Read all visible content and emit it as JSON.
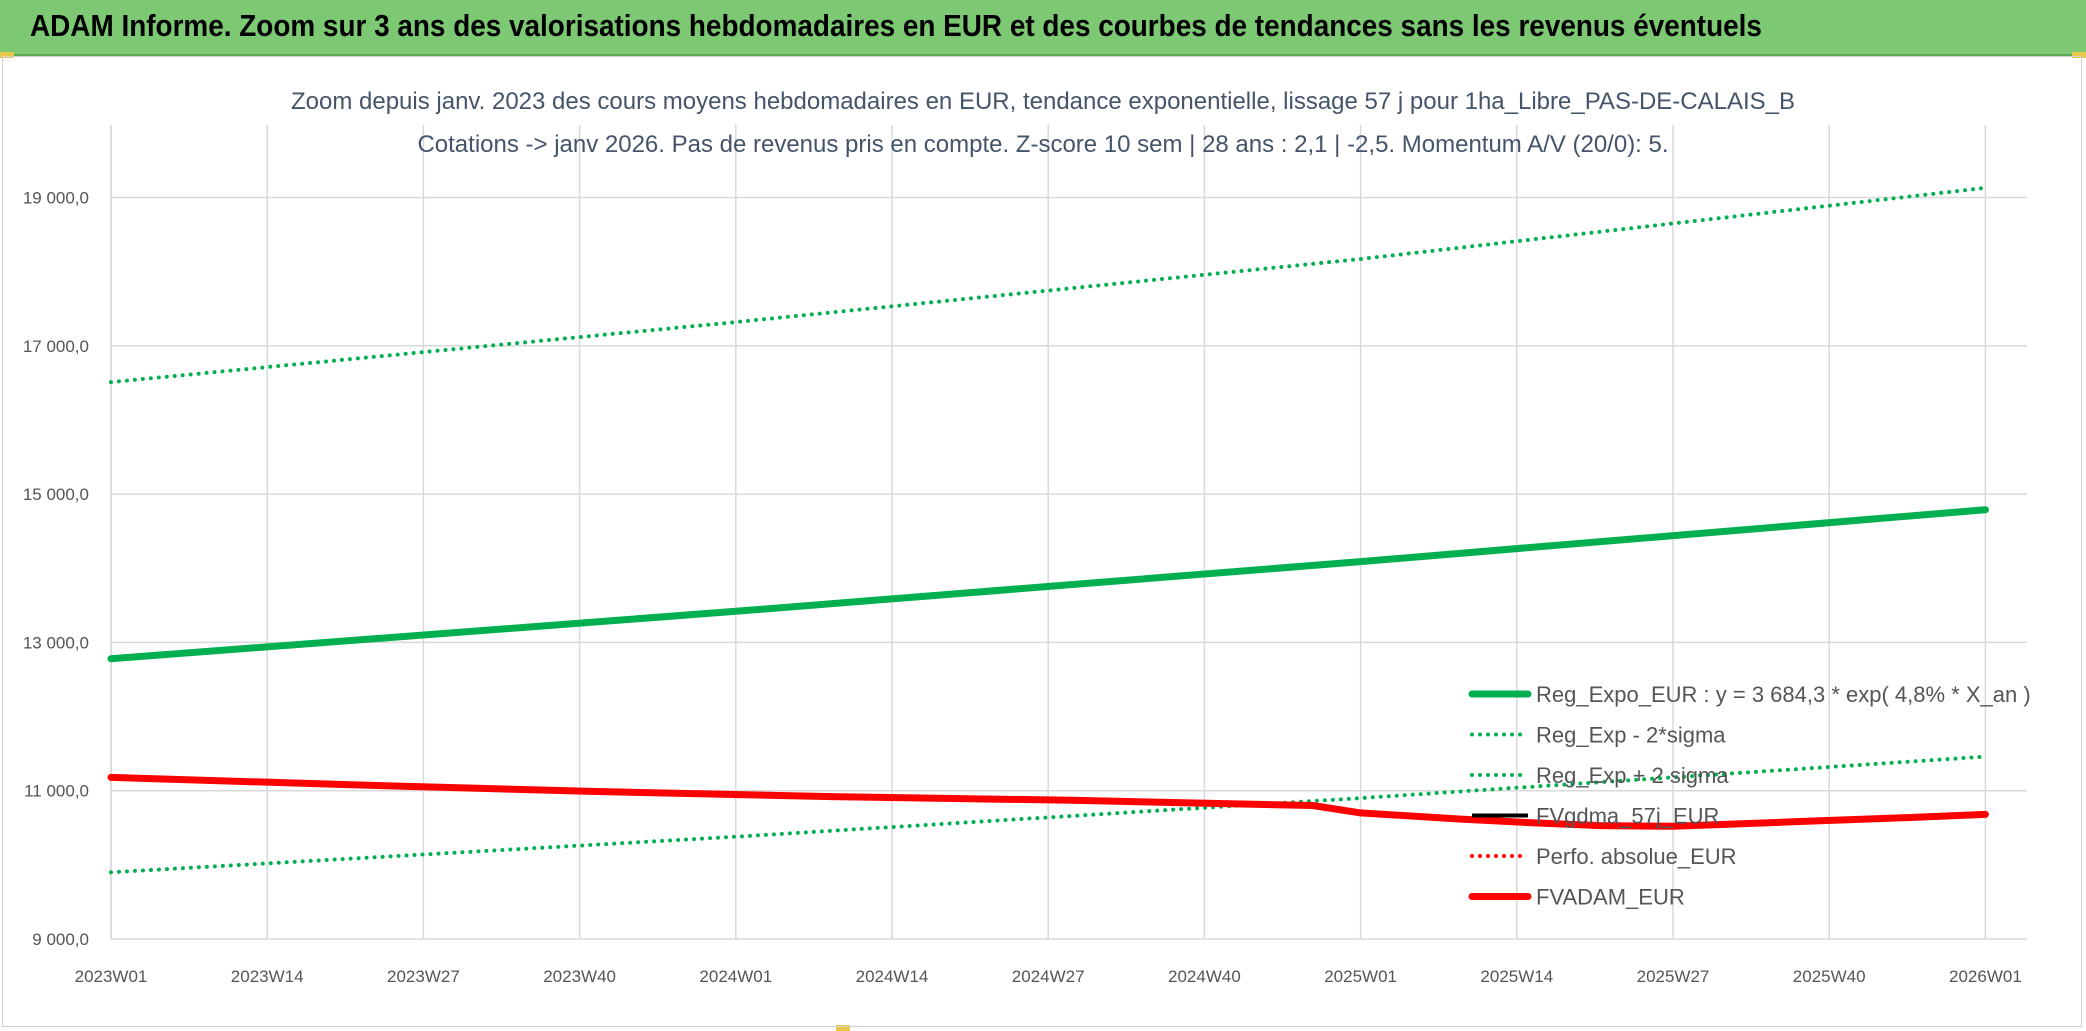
{
  "banner": {
    "title": "ADAM Informe. Zoom sur 3 ans des valorisations hebdomadaires en EUR et des courbes de tendances sans les revenus éventuels"
  },
  "chart_data": {
    "type": "line",
    "title": "Zoom depuis janv. 2023 des cours moyens hebdomadaires en EUR, tendance exponentielle, lissage 57 j pour 1ha_Libre_PAS-DE-CALAIS_B",
    "subtitle": "Cotations -> janv 2026. Pas de revenus pris en compte. Z-score 10 sem | 28 ans : 2,1 | -2,5. Momentum A/V (20/0): 5.",
    "xlabel": "",
    "ylabel": "",
    "x_tick_labels": [
      "2023W01",
      "2023W14",
      "2023W27",
      "2023W40",
      "2024W01",
      "2024W14",
      "2024W27",
      "2024W40",
      "2025W01",
      "2025W14",
      "2025W27",
      "2025W40",
      "2026W01"
    ],
    "x_range_weeks": [
      0,
      160
    ],
    "y_tick_labels": [
      "9 000,0",
      "11 000,0",
      "13 000,0",
      "15 000,0",
      "17 000,0",
      "19 000,0"
    ],
    "y_ticks": [
      9000,
      11000,
      13000,
      15000,
      17000,
      19000
    ],
    "ylim": [
      9000,
      20000
    ],
    "grid": true,
    "legend_position": "bottom-right",
    "series": [
      {
        "name": "Reg_Expo_EUR : y = 3 684,3 * exp( 4,8% *  X_an )",
        "color": "#00b050",
        "style": "solid-thick",
        "points": [
          [
            0,
            12780
          ],
          [
            52,
            13420
          ],
          [
            104,
            14090
          ],
          [
            156,
            14790
          ]
        ]
      },
      {
        "name": "Reg_Exp - 2*sigma",
        "color": "#00b050",
        "style": "dotted",
        "points": [
          [
            0,
            9900
          ],
          [
            52,
            10380
          ],
          [
            104,
            10900
          ],
          [
            156,
            11460
          ]
        ]
      },
      {
        "name": "Reg_Exp + 2 sigma",
        "color": "#00b050",
        "style": "dotted",
        "points": [
          [
            0,
            16510
          ],
          [
            52,
            17320
          ],
          [
            104,
            18170
          ],
          [
            156,
            19130
          ]
        ]
      },
      {
        "name": "FVgdma_57j_EUR",
        "color": "#000000",
        "style": "solid",
        "points": []
      },
      {
        "name": "Perfo. absolue_EUR",
        "color": "#ff0000",
        "style": "dotted",
        "points": []
      },
      {
        "name": "FVADAM_EUR",
        "color": "#ff0000",
        "style": "solid-thick",
        "points": [
          [
            0,
            11180
          ],
          [
            20,
            11080
          ],
          [
            40,
            10990
          ],
          [
            60,
            10920
          ],
          [
            80,
            10870
          ],
          [
            100,
            10800
          ],
          [
            104,
            10700
          ],
          [
            112,
            10620
          ],
          [
            118,
            10570
          ],
          [
            124,
            10530
          ],
          [
            130,
            10520
          ],
          [
            140,
            10580
          ],
          [
            150,
            10640
          ],
          [
            156,
            10680
          ]
        ]
      }
    ]
  }
}
